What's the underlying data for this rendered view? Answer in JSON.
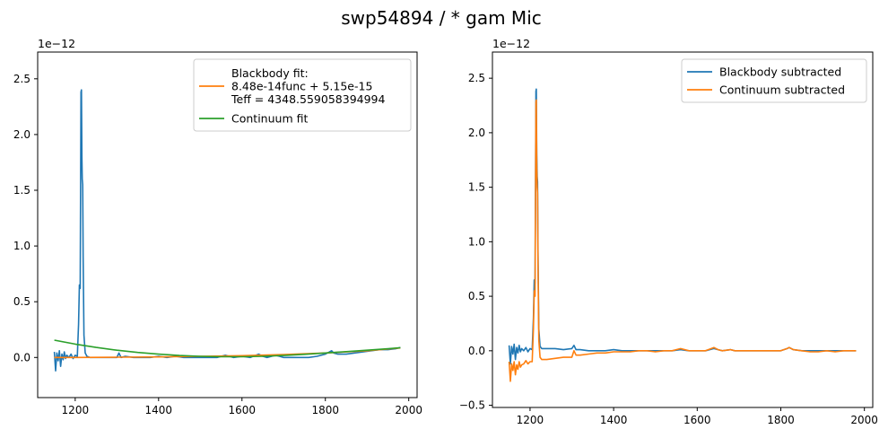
{
  "figure": {
    "title": "swp54894 / * gam Mic"
  },
  "chart_data": [
    {
      "type": "line",
      "panel": "left",
      "xlim": [
        1110,
        2020
      ],
      "ylim": [
        -0.36,
        2.74
      ],
      "offset_text": "1e−12",
      "x_ticks": [
        1200,
        1400,
        1600,
        1800,
        2000
      ],
      "x_tick_labels": [
        "1200",
        "1400",
        "1600",
        "1800",
        "2000"
      ],
      "y_ticks": [
        0.0,
        0.5,
        1.0,
        1.5,
        2.0,
        2.5
      ],
      "y_tick_labels": [
        "0.0",
        "0.5",
        "1.0",
        "1.5",
        "2.0",
        "2.5"
      ],
      "legend": {
        "position": "top-right",
        "entries": [
          {
            "label_lines": [
              "Blackbody fit:",
              "8.48e-14func + 5.15e-15",
              "Teff = 4348.559058394994"
            ],
            "color": "#ff7f0e"
          },
          {
            "label_lines": [
              "Continuum fit"
            ],
            "color": "#2ca02c"
          }
        ]
      },
      "series": [
        {
          "role": "spectrum",
          "color": "#1f77b4",
          "x": [
            1150,
            1153,
            1156,
            1159,
            1162,
            1165,
            1168,
            1171,
            1174,
            1177,
            1180,
            1185,
            1190,
            1195,
            1200,
            1205,
            1208,
            1210,
            1212,
            1214,
            1215,
            1216,
            1217,
            1218,
            1219,
            1221,
            1224,
            1228,
            1235,
            1245,
            1260,
            1280,
            1300,
            1305,
            1310,
            1320,
            1340,
            1360,
            1380,
            1400,
            1420,
            1440,
            1460,
            1480,
            1500,
            1520,
            1540,
            1560,
            1580,
            1600,
            1620,
            1640,
            1650,
            1660,
            1680,
            1690,
            1700,
            1720,
            1740,
            1760,
            1780,
            1800,
            1815,
            1820,
            1830,
            1850,
            1870,
            1890,
            1910,
            1930,
            1950,
            1970,
            1980
          ],
          "y": [
            0.05,
            -0.12,
            0.04,
            -0.03,
            0.06,
            -0.08,
            0.03,
            -0.02,
            0.05,
            -0.01,
            0.02,
            0.0,
            0.03,
            -0.01,
            0.02,
            0.01,
            0.3,
            0.65,
            0.62,
            2.38,
            2.4,
            1.8,
            1.6,
            1.55,
            0.9,
            0.2,
            0.04,
            0.01,
            0.0,
            0.0,
            0.0,
            0.0,
            0.0,
            0.04,
            0.0,
            0.01,
            0.0,
            0.0,
            0.0,
            0.01,
            0.0,
            0.01,
            0.0,
            0.0,
            0.0,
            0.0,
            0.0,
            0.02,
            0.0,
            0.01,
            0.0,
            0.03,
            0.01,
            0.0,
            0.02,
            0.01,
            0.0,
            0.0,
            0.0,
            0.0,
            0.01,
            0.03,
            0.06,
            0.04,
            0.03,
            0.03,
            0.04,
            0.05,
            0.06,
            0.07,
            0.07,
            0.08,
            0.09
          ]
        },
        {
          "role": "blackbody-fit",
          "color": "#ff7f0e",
          "x": [
            1150,
            1200,
            1300,
            1400,
            1500,
            1600,
            1700,
            1800,
            1900,
            1980
          ],
          "y": [
            0.0,
            0.0,
            0.002,
            0.005,
            0.01,
            0.016,
            0.026,
            0.04,
            0.06,
            0.085
          ]
        },
        {
          "role": "continuum-fit",
          "color": "#2ca02c",
          "x": [
            1150,
            1200,
            1250,
            1300,
            1350,
            1400,
            1450,
            1500,
            1550,
            1600,
            1650,
            1700,
            1750,
            1800,
            1850,
            1900,
            1950,
            1980
          ],
          "y": [
            0.155,
            0.12,
            0.09,
            0.065,
            0.045,
            0.03,
            0.018,
            0.01,
            0.006,
            0.006,
            0.01,
            0.018,
            0.028,
            0.04,
            0.052,
            0.065,
            0.078,
            0.088
          ]
        }
      ]
    },
    {
      "type": "line",
      "panel": "right",
      "xlim": [
        1110,
        2020
      ],
      "ylim": [
        -0.52,
        2.74
      ],
      "offset_text": "1e−12",
      "x_ticks": [
        1200,
        1400,
        1600,
        1800,
        2000
      ],
      "x_tick_labels": [
        "1200",
        "1400",
        "1600",
        "1800",
        "2000"
      ],
      "y_ticks": [
        -0.5,
        0.0,
        0.5,
        1.0,
        1.5,
        2.0,
        2.5
      ],
      "y_tick_labels": [
        "−0.5",
        "0.0",
        "0.5",
        "1.0",
        "1.5",
        "2.0",
        "2.5"
      ],
      "legend": {
        "position": "top-right",
        "entries": [
          {
            "label_lines": [
              "Blackbody subtracted"
            ],
            "color": "#1f77b4"
          },
          {
            "label_lines": [
              "Continuum subtracted"
            ],
            "color": "#ff7f0e"
          }
        ]
      },
      "series": [
        {
          "name": "Blackbody subtracted",
          "color": "#1f77b4",
          "x": [
            1150,
            1153,
            1156,
            1159,
            1162,
            1165,
            1168,
            1171,
            1174,
            1177,
            1180,
            1185,
            1190,
            1195,
            1200,
            1205,
            1208,
            1210,
            1212,
            1214,
            1215,
            1216,
            1217,
            1218,
            1219,
            1221,
            1224,
            1228,
            1240,
            1260,
            1280,
            1300,
            1305,
            1310,
            1320,
            1340,
            1360,
            1380,
            1400,
            1420,
            1440,
            1460,
            1480,
            1500,
            1520,
            1540,
            1560,
            1580,
            1600,
            1620,
            1640,
            1650,
            1660,
            1680,
            1690,
            1700,
            1720,
            1740,
            1760,
            1780,
            1800,
            1815,
            1820,
            1830,
            1850,
            1870,
            1890,
            1910,
            1930,
            1950,
            1970,
            1980
          ],
          "y": [
            0.05,
            -0.12,
            0.04,
            -0.03,
            0.06,
            -0.08,
            0.03,
            -0.02,
            0.05,
            -0.01,
            0.02,
            0.0,
            0.03,
            -0.01,
            0.02,
            0.01,
            0.3,
            0.65,
            0.62,
            2.38,
            2.4,
            1.8,
            1.6,
            1.55,
            0.9,
            0.2,
            0.04,
            0.02,
            0.02,
            0.02,
            0.01,
            0.02,
            0.05,
            0.01,
            0.01,
            0.0,
            0.0,
            0.0,
            0.01,
            0.0,
            0.0,
            0.0,
            0.0,
            0.0,
            0.0,
            0.0,
            0.01,
            0.0,
            0.0,
            0.0,
            0.02,
            0.01,
            0.0,
            0.01,
            0.0,
            0.0,
            0.0,
            0.0,
            0.0,
            0.0,
            0.0,
            0.02,
            0.03,
            0.01,
            0.0,
            0.0,
            0.0,
            0.0,
            0.0,
            0.0,
            0.0,
            0.0
          ]
        },
        {
          "name": "Continuum subtracted",
          "color": "#ff7f0e",
          "x": [
            1150,
            1153,
            1156,
            1159,
            1162,
            1165,
            1168,
            1171,
            1174,
            1177,
            1180,
            1185,
            1190,
            1195,
            1200,
            1205,
            1208,
            1210,
            1212,
            1214,
            1215,
            1216,
            1217,
            1218,
            1219,
            1221,
            1224,
            1228,
            1240,
            1260,
            1280,
            1300,
            1305,
            1310,
            1320,
            1340,
            1360,
            1380,
            1400,
            1420,
            1440,
            1460,
            1480,
            1500,
            1520,
            1540,
            1560,
            1580,
            1600,
            1620,
            1640,
            1650,
            1660,
            1680,
            1690,
            1700,
            1720,
            1740,
            1760,
            1780,
            1800,
            1815,
            1820,
            1830,
            1850,
            1870,
            1890,
            1910,
            1930,
            1950,
            1970,
            1980
          ],
          "y": [
            -0.1,
            -0.28,
            -0.12,
            -0.18,
            -0.1,
            -0.22,
            -0.13,
            -0.17,
            -0.1,
            -0.15,
            -0.13,
            -0.12,
            -0.09,
            -0.12,
            -0.1,
            -0.1,
            0.2,
            0.55,
            0.5,
            2.28,
            2.3,
            1.7,
            1.5,
            1.45,
            0.8,
            0.1,
            -0.06,
            -0.08,
            -0.08,
            -0.07,
            -0.06,
            -0.06,
            0.0,
            -0.04,
            -0.04,
            -0.03,
            -0.02,
            -0.02,
            -0.01,
            -0.01,
            -0.01,
            0.0,
            0.0,
            -0.01,
            0.0,
            0.0,
            0.02,
            0.0,
            0.0,
            0.0,
            0.03,
            0.01,
            0.0,
            0.01,
            0.0,
            0.0,
            0.0,
            0.0,
            0.0,
            0.0,
            0.0,
            0.02,
            0.03,
            0.01,
            0.0,
            -0.01,
            -0.01,
            0.0,
            -0.01,
            0.0,
            0.0,
            0.0
          ]
        }
      ]
    }
  ]
}
